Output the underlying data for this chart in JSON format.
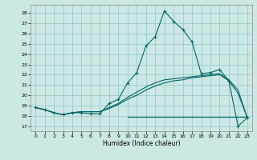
{
  "background_color": "#cce8e4",
  "grid_color": "#99cccc",
  "line_color": "#006666",
  "xlabel": "Humidex (Indice chaleur)",
  "ylim": [
    16.5,
    28.8
  ],
  "xlim": [
    -0.5,
    23.5
  ],
  "yticks": [
    17,
    18,
    19,
    20,
    21,
    22,
    23,
    24,
    25,
    26,
    27,
    28
  ],
  "xticks": [
    0,
    1,
    2,
    3,
    4,
    5,
    6,
    7,
    8,
    9,
    10,
    11,
    12,
    13,
    14,
    15,
    16,
    17,
    18,
    19,
    20,
    21,
    22,
    23
  ],
  "series1_x": [
    0,
    1,
    2,
    3,
    4,
    5,
    6,
    7,
    8,
    9,
    10,
    11,
    12,
    13,
    14,
    15,
    16,
    17,
    18,
    19,
    20,
    21,
    22,
    23
  ],
  "series1_y": [
    18.8,
    18.6,
    18.3,
    18.1,
    18.3,
    18.3,
    18.2,
    18.2,
    19.2,
    19.6,
    21.2,
    22.2,
    24.8,
    25.7,
    28.2,
    27.2,
    26.4,
    25.2,
    22.1,
    22.2,
    22.5,
    21.4,
    17.0,
    17.8
  ],
  "series2_x": [
    0,
    1,
    2,
    3,
    4,
    5,
    6,
    7,
    8,
    9,
    10,
    11,
    12,
    13,
    14,
    15,
    16,
    17,
    18,
    19,
    20,
    21,
    22,
    23
  ],
  "series2_y": [
    18.8,
    18.6,
    18.3,
    18.1,
    18.3,
    18.4,
    18.4,
    18.4,
    18.8,
    19.2,
    19.8,
    20.3,
    20.8,
    21.2,
    21.5,
    21.6,
    21.7,
    21.8,
    21.9,
    22.0,
    22.1,
    21.5,
    20.5,
    17.8
  ],
  "series3_x": [
    10,
    11,
    12,
    13,
    14,
    15,
    16,
    17,
    18,
    19,
    20,
    21,
    22,
    23
  ],
  "series3_y": [
    17.9,
    17.9,
    17.9,
    17.9,
    17.9,
    17.9,
    17.9,
    17.9,
    17.9,
    17.9,
    17.9,
    17.9,
    17.9,
    17.9
  ],
  "series4_x": [
    0,
    1,
    2,
    3,
    4,
    5,
    6,
    7,
    8,
    9,
    10,
    11,
    12,
    13,
    14,
    15,
    16,
    17,
    18,
    19,
    20,
    21,
    22,
    23
  ],
  "series4_y": [
    18.8,
    18.6,
    18.3,
    18.1,
    18.3,
    18.4,
    18.4,
    18.4,
    18.7,
    19.1,
    19.6,
    20.0,
    20.5,
    20.9,
    21.2,
    21.4,
    21.5,
    21.7,
    21.8,
    21.9,
    22.0,
    21.4,
    20.2,
    17.8
  ]
}
